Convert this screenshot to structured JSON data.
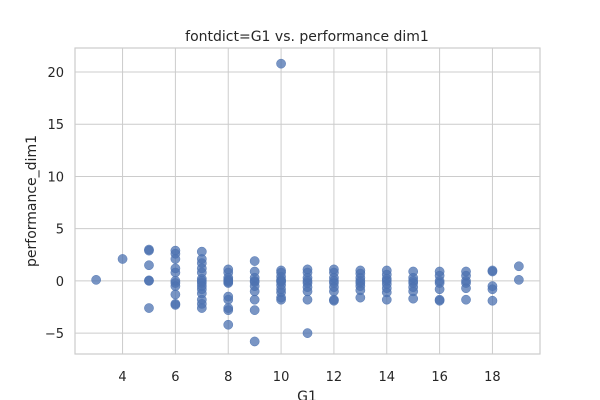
{
  "chart_data": {
    "type": "scatter",
    "title": "fontdict=G1 vs. performance dim1",
    "xlabel": "G1",
    "ylabel": "performance_dim1",
    "xlim": [
      2.2,
      19.8
    ],
    "ylim": [
      -7.0,
      22.3
    ],
    "xticks": [
      4,
      6,
      8,
      10,
      12,
      14,
      16,
      18
    ],
    "yticks": [
      -5,
      0,
      5,
      10,
      15,
      20
    ],
    "grid": true,
    "color": "#4c72b0",
    "points": [
      [
        3,
        0.1
      ],
      [
        4,
        2.1
      ],
      [
        5,
        3.0
      ],
      [
        5,
        2.9
      ],
      [
        5,
        1.5
      ],
      [
        5,
        0.0
      ],
      [
        5,
        0.05
      ],
      [
        5,
        -2.6
      ],
      [
        6,
        2.9
      ],
      [
        6,
        2.6
      ],
      [
        6,
        2.1
      ],
      [
        6,
        1.2
      ],
      [
        6,
        0.8
      ],
      [
        6,
        0.0
      ],
      [
        6,
        -0.2
      ],
      [
        6,
        -0.5
      ],
      [
        6,
        -1.3
      ],
      [
        6,
        -2.2
      ],
      [
        6,
        -2.3
      ],
      [
        7,
        2.8
      ],
      [
        7,
        2.1
      ],
      [
        7,
        1.7
      ],
      [
        7,
        1.2
      ],
      [
        7,
        0.8
      ],
      [
        7,
        0.2
      ],
      [
        7,
        0.0
      ],
      [
        7,
        -0.2
      ],
      [
        7,
        -0.5
      ],
      [
        7,
        -0.8
      ],
      [
        7,
        -1.2
      ],
      [
        7,
        -1.8
      ],
      [
        7,
        -2.2
      ],
      [
        7,
        -2.6
      ],
      [
        8,
        1.1
      ],
      [
        8,
        0.8
      ],
      [
        8,
        0.3
      ],
      [
        8,
        0.1
      ],
      [
        8,
        0.0
      ],
      [
        8,
        -0.1
      ],
      [
        8,
        -0.2
      ],
      [
        8,
        -1.5
      ],
      [
        8,
        -1.8
      ],
      [
        8,
        -2.6
      ],
      [
        8,
        -2.8
      ],
      [
        8,
        -4.2
      ],
      [
        9,
        1.9
      ],
      [
        9,
        0.9
      ],
      [
        9,
        0.3
      ],
      [
        9,
        0.0
      ],
      [
        9,
        -0.1
      ],
      [
        9,
        -0.5
      ],
      [
        9,
        -1.0
      ],
      [
        9,
        -1.8
      ],
      [
        9,
        -2.8
      ],
      [
        9,
        -5.8
      ],
      [
        10,
        20.8
      ],
      [
        10,
        1.0
      ],
      [
        10,
        0.8
      ],
      [
        10,
        0.4
      ],
      [
        10,
        0.1
      ],
      [
        10,
        0.0
      ],
      [
        10,
        -0.1
      ],
      [
        10,
        -0.4
      ],
      [
        10,
        -0.8
      ],
      [
        10,
        -1.1
      ],
      [
        10,
        -1.6
      ],
      [
        10,
        -1.8
      ],
      [
        11,
        1.1
      ],
      [
        11,
        0.8
      ],
      [
        11,
        0.3
      ],
      [
        11,
        0.0
      ],
      [
        11,
        -0.2
      ],
      [
        11,
        -0.6
      ],
      [
        11,
        -1.0
      ],
      [
        11,
        -1.8
      ],
      [
        11,
        -5.0
      ],
      [
        12,
        1.1
      ],
      [
        12,
        0.8
      ],
      [
        12,
        0.3
      ],
      [
        12,
        0.0
      ],
      [
        12,
        -0.2
      ],
      [
        12,
        -0.6
      ],
      [
        12,
        -1.0
      ],
      [
        12,
        -1.8
      ],
      [
        12,
        -1.9
      ],
      [
        13,
        1.0
      ],
      [
        13,
        0.7
      ],
      [
        13,
        0.3
      ],
      [
        13,
        0.0
      ],
      [
        13,
        -0.2
      ],
      [
        13,
        -0.5
      ],
      [
        13,
        -0.9
      ],
      [
        13,
        -1.6
      ],
      [
        14,
        1.0
      ],
      [
        14,
        0.6
      ],
      [
        14,
        0.2
      ],
      [
        14,
        0.0
      ],
      [
        14,
        -0.3
      ],
      [
        14,
        -0.7
      ],
      [
        14,
        -1.1
      ],
      [
        14,
        -1.8
      ],
      [
        15,
        0.9
      ],
      [
        15,
        0.3
      ],
      [
        15,
        0.0
      ],
      [
        15,
        -0.2
      ],
      [
        15,
        -0.6
      ],
      [
        15,
        -1.0
      ],
      [
        15,
        -1.7
      ],
      [
        16,
        0.9
      ],
      [
        16,
        0.5
      ],
      [
        16,
        0.0
      ],
      [
        16,
        -0.2
      ],
      [
        16,
        -0.8
      ],
      [
        16,
        -1.8
      ],
      [
        16,
        -1.9
      ],
      [
        17,
        0.9
      ],
      [
        17,
        0.5
      ],
      [
        17,
        0.0
      ],
      [
        17,
        -0.2
      ],
      [
        17,
        -0.7
      ],
      [
        17,
        -1.8
      ],
      [
        18,
        1.0
      ],
      [
        18,
        0.9
      ],
      [
        18,
        -0.5
      ],
      [
        18,
        -0.8
      ],
      [
        18,
        -1.9
      ],
      [
        19,
        1.4
      ],
      [
        19,
        0.1
      ]
    ]
  }
}
